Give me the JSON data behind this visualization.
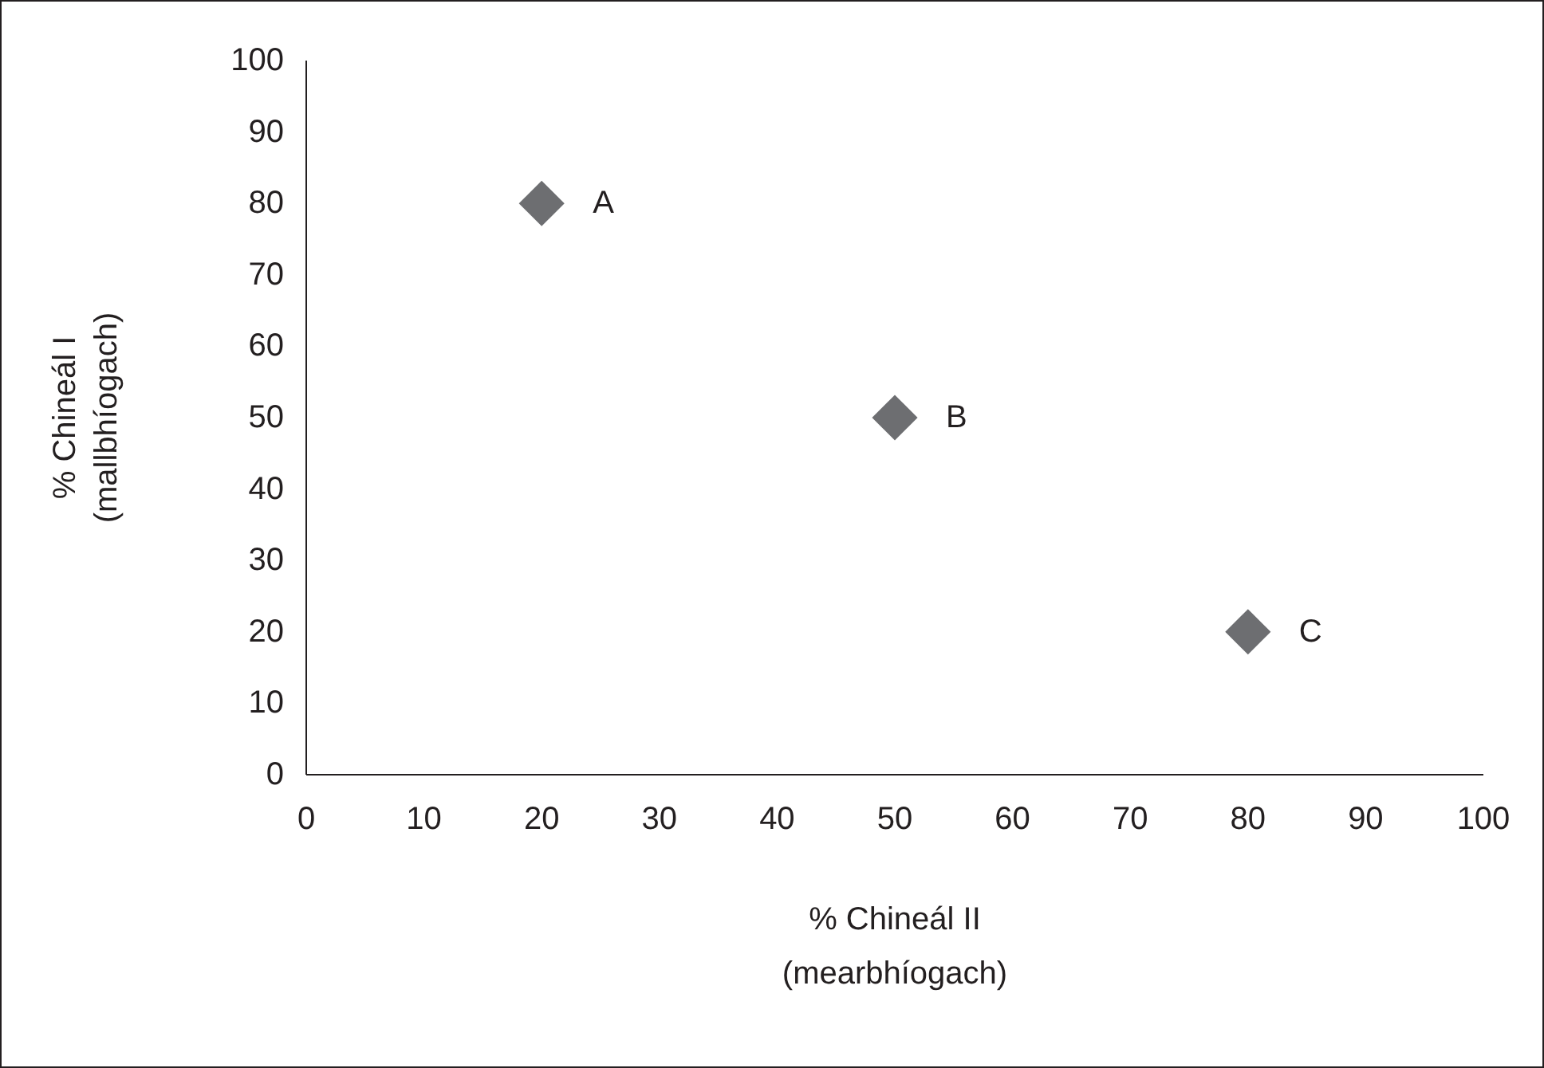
{
  "chart_data": {
    "type": "scatter",
    "xlabel": "% Chineál II\n(mearbhíogach)",
    "ylabel": "% Chineál I\n(mallbhíogach)",
    "x": [
      20,
      50,
      80
    ],
    "series": [
      {
        "color": "#6d6e71",
        "values": [
          80,
          50,
          20
        ]
      }
    ],
    "marker": "diamond",
    "xlim": [
      0,
      100
    ],
    "ylim": [
      0,
      100
    ],
    "xticks": [
      0,
      10,
      20,
      30,
      40,
      50,
      60,
      70,
      80,
      90,
      100
    ],
    "yticks": [
      0,
      10,
      20,
      30,
      40,
      50,
      60,
      70,
      80,
      90,
      100
    ],
    "annotations": [
      {
        "text": "A",
        "x": 20,
        "y": 80
      },
      {
        "text": "B",
        "x": 50,
        "y": 50
      },
      {
        "text": "C",
        "x": 80,
        "y": 20
      }
    ],
    "grid": false
  }
}
